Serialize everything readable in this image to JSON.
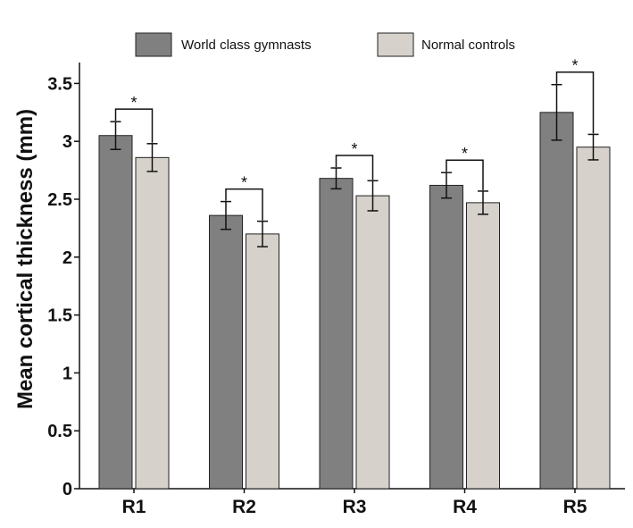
{
  "chart_data": {
    "type": "bar",
    "title": "",
    "xlabel": "",
    "ylabel": "Mean cortical thickness (mm)",
    "categories": [
      "R1",
      "R2",
      "R3",
      "R4",
      "R5"
    ],
    "ylim": [
      0,
      3.7
    ],
    "yticks": [
      0,
      0.5,
      1,
      1.5,
      2,
      2.5,
      3,
      3.5
    ],
    "ytick_labels": [
      "0",
      "0.5",
      "1",
      "1.5",
      "2",
      "2.5",
      "3",
      "3.5"
    ],
    "series": [
      {
        "name": "World class gymnasts",
        "color": "#808080",
        "values": [
          3.05,
          2.36,
          2.68,
          2.62,
          3.25
        ],
        "errors": [
          0.12,
          0.12,
          0.09,
          0.11,
          0.24
        ]
      },
      {
        "name": "Normal controls",
        "color": "#d6d2cb",
        "values": [
          2.86,
          2.2,
          2.53,
          2.47,
          2.95
        ],
        "errors": [
          0.12,
          0.11,
          0.13,
          0.1,
          0.11
        ]
      }
    ],
    "significance": [
      {
        "category": "R1",
        "label": "*"
      },
      {
        "category": "R2",
        "label": "*"
      },
      {
        "category": "R3",
        "label": "*"
      },
      {
        "category": "R4",
        "label": "*"
      },
      {
        "category": "R5",
        "label": "*"
      }
    ],
    "legend": [
      "World class gymnasts",
      "Normal controls"
    ],
    "legend_position": "top-center",
    "grid": false
  }
}
